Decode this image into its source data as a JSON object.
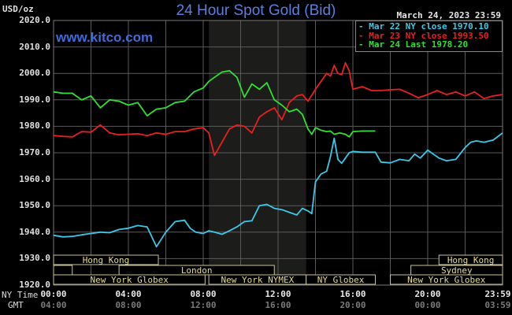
{
  "header": {
    "title": "24 Hour Spot Gold (Bid)",
    "unit": "USD/oz",
    "datetime": "March 24, 2023 23:59",
    "website": "www.kitco.com"
  },
  "legend": [
    {
      "label": "Mar 22 NY close 1970.10",
      "color": "#3cc8e8"
    },
    {
      "label": "Mar 23 NY close 1993.50",
      "color": "#e82020"
    },
    {
      "label": "Mar 24 Last 1978.20",
      "color": "#30e030"
    }
  ],
  "axis": {
    "row_ny_label": "NY Time",
    "row_gmt_label": "GMT",
    "ny_ticks": [
      "00:00",
      "04:00",
      "08:00",
      "12:00",
      "16:00",
      "20:00",
      "23:59"
    ],
    "gmt_ticks": [
      "04:00",
      "08:00",
      "12:00",
      "16:00",
      "20:00",
      "00:00",
      "03:59"
    ],
    "y_ticks": [
      "2020.0",
      "2010.0",
      "2000.0",
      "1990.0",
      "1980.0",
      "1970.0",
      "1960.0",
      "1950.0",
      "1940.0",
      "1930.0",
      "1920.0"
    ]
  },
  "sessions": [
    {
      "label": "Hong Kong",
      "row": 0,
      "start": 0,
      "end": 5.6
    },
    {
      "label": "",
      "row": 1,
      "start": 0,
      "end": 1.0
    },
    {
      "label": "London",
      "row": 1,
      "start": 3.5,
      "end": 11.8
    },
    {
      "label": "New York Globex",
      "row": 2,
      "start": 0,
      "end": 8.1
    },
    {
      "label": "New York NYMEX",
      "row": 2,
      "start": 8.3,
      "end": 13.5
    },
    {
      "label": "NY Globex",
      "row": 2,
      "start": 13.5,
      "end": 17.2
    },
    {
      "label": "Hong Kong",
      "row": 0,
      "start": 20.6,
      "end": 24
    },
    {
      "label": "Sydney",
      "row": 1,
      "start": 19.1,
      "end": 24
    },
    {
      "label": "New York Globex",
      "row": 2,
      "start": 18.0,
      "end": 24
    }
  ],
  "chart_data": {
    "type": "line",
    "title": "24 Hour Spot Gold (Bid)",
    "xlabel": "NY Time",
    "ylabel": "USD/oz",
    "ylim": [
      1920,
      2020
    ],
    "xlim": [
      0,
      24
    ],
    "grid": true,
    "shaded_region": [
      8.3,
      13.5
    ],
    "legend_position": "top-right",
    "series": [
      {
        "name": "Mar 22 NY close 1970.10",
        "color": "#3cc8e8",
        "x": [
          0,
          0.5,
          1.0,
          1.5,
          2.0,
          2.5,
          3.0,
          3.5,
          4.0,
          4.5,
          5.0,
          5.5,
          6.0,
          6.5,
          7.0,
          7.3,
          7.6,
          8.0,
          8.3,
          8.6,
          9.0,
          9.4,
          9.8,
          10.2,
          10.6,
          11.0,
          11.4,
          11.8,
          12.2,
          12.6,
          13.0,
          13.3,
          13.6,
          13.8,
          14.0,
          14.3,
          14.6,
          14.8,
          15.0,
          15.2,
          15.4,
          15.6,
          15.8,
          16.0,
          16.5,
          17.0,
          17.2,
          17.5,
          18.0,
          18.5,
          19.0,
          19.3,
          19.6,
          20.0,
          20.3,
          20.6,
          21.0,
          21.5,
          22.0,
          22.3,
          22.6,
          23.0,
          23.5,
          24.0
        ],
        "values": [
          1938.8,
          1938.2,
          1938.4,
          1939.0,
          1939.5,
          1940.0,
          1939.8,
          1941.0,
          1941.5,
          1942.5,
          1942.0,
          1934.5,
          1940.0,
          1944.0,
          1944.5,
          1941.5,
          1940.0,
          1939.5,
          1940.5,
          1940.0,
          1939.2,
          1940.5,
          1942.0,
          1944.0,
          1944.3,
          1950.0,
          1950.5,
          1949.0,
          1948.5,
          1947.5,
          1946.5,
          1949.0,
          1948.0,
          1947.0,
          1959.0,
          1962.0,
          1963.0,
          1968.5,
          1975.5,
          1967.5,
          1966.0,
          1968.0,
          1970.0,
          1970.5,
          1970.2,
          1970.2,
          1970.2,
          1966.5,
          1966.2,
          1967.5,
          1967.0,
          1969.5,
          1968.0,
          1971.0,
          1969.5,
          1968.0,
          1967.0,
          1967.5,
          1972.0,
          1974.0,
          1974.5,
          1974.0,
          1974.8,
          1977.5
        ]
      },
      {
        "name": "Mar 23 NY close 1993.50",
        "color": "#e82020",
        "x": [
          0,
          0.5,
          1.0,
          1.5,
          2.0,
          2.5,
          3.0,
          3.5,
          4.0,
          4.5,
          5.0,
          5.5,
          6.0,
          6.5,
          7.0,
          7.5,
          8.0,
          8.3,
          8.6,
          9.0,
          9.4,
          9.8,
          10.2,
          10.6,
          11.0,
          11.4,
          11.8,
          12.2,
          12.6,
          13.0,
          13.3,
          13.6,
          14.0,
          14.3,
          14.6,
          14.8,
          15.0,
          15.2,
          15.4,
          15.6,
          15.8,
          16.0,
          16.5,
          17.0,
          17.5,
          18.0,
          18.5,
          19.0,
          19.5,
          20.0,
          20.5,
          21.0,
          21.5,
          22.0,
          22.5,
          23.0,
          23.5,
          24.0
        ],
        "values": [
          1976.5,
          1976.2,
          1976.0,
          1978.0,
          1977.8,
          1980.5,
          1977.5,
          1976.8,
          1977.0,
          1977.2,
          1976.5,
          1977.5,
          1977.0,
          1978.0,
          1978.0,
          1979.0,
          1979.5,
          1977.5,
          1969.0,
          1974.0,
          1979.0,
          1980.5,
          1980.0,
          1977.5,
          1983.5,
          1985.5,
          1987.0,
          1982.5,
          1989.0,
          1991.5,
          1992.0,
          1989.5,
          1994.0,
          1997.0,
          2000.0,
          1999.0,
          2003.0,
          2000.0,
          1999.5,
          2004.0,
          2001.0,
          1994.0,
          1995.0,
          1993.5,
          1993.5,
          1993.8,
          1994.0,
          1992.5,
          1990.8,
          1992.0,
          1993.5,
          1992.0,
          1993.0,
          1991.5,
          1993.0,
          1990.5,
          1991.5,
          1992.0
        ]
      },
      {
        "name": "Mar 24 Last 1978.20",
        "color": "#30e030",
        "x": [
          0,
          0.5,
          1.0,
          1.5,
          2.0,
          2.5,
          3.0,
          3.5,
          4.0,
          4.5,
          5.0,
          5.5,
          6.0,
          6.5,
          7.0,
          7.5,
          8.0,
          8.3,
          8.6,
          9.0,
          9.4,
          9.8,
          10.2,
          10.6,
          11.0,
          11.4,
          11.8,
          12.2,
          12.6,
          13.0,
          13.3,
          13.6,
          13.8,
          14.0,
          14.3,
          14.6,
          14.8,
          15.0,
          15.3,
          15.6,
          15.8,
          16.0,
          16.5,
          17.0,
          17.2
        ],
        "values": [
          1993.0,
          1992.5,
          1992.5,
          1990.0,
          1991.5,
          1987.0,
          1990.0,
          1989.5,
          1988.0,
          1989.0,
          1984.0,
          1986.5,
          1987.0,
          1989.0,
          1989.5,
          1993.0,
          1994.5,
          1997.0,
          1998.5,
          2000.5,
          2001.0,
          1998.5,
          1991.0,
          1996.0,
          1994.0,
          1996.5,
          1990.0,
          1988.0,
          1985.5,
          1986.5,
          1984.5,
          1979.0,
          1977.0,
          1979.5,
          1978.5,
          1978.0,
          1978.2,
          1977.0,
          1977.5,
          1977.0,
          1976.0,
          1978.0,
          1978.2,
          1978.2,
          1978.2
        ]
      }
    ]
  }
}
